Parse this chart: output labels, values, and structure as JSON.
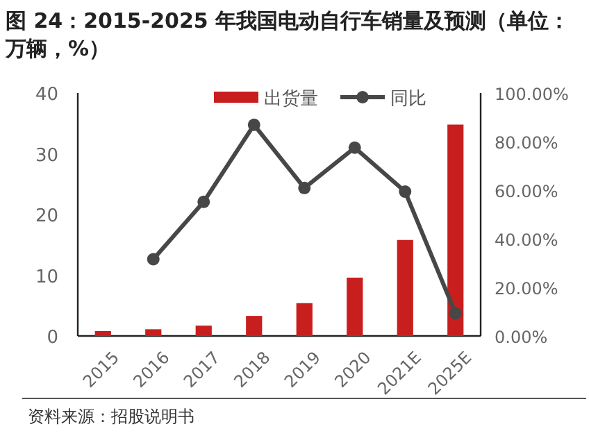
{
  "chart_data": {
    "type": "bar",
    "title": "图 24：2015-2025 年我国电动自行车销量及预测（单位：万辆，%）",
    "categories": [
      "2015",
      "2016",
      "2017",
      "2018",
      "2019",
      "2020",
      "2021E",
      "2025E"
    ],
    "series": [
      {
        "name": "出货量",
        "color": "#c81e1e",
        "values": [
          0.8,
          1.1,
          1.7,
          3.3,
          5.4,
          9.6,
          15.8,
          34.8
        ]
      },
      {
        "name": "同比",
        "type": "line",
        "axis": "y2",
        "color": "#474747",
        "marker": "circle",
        "values": [
          null,
          31.6,
          55.2,
          86.9,
          60.9,
          77.5,
          59.4,
          9.3
        ]
      }
    ],
    "ylim": [
      0,
      40
    ],
    "yticks": [
      0,
      10,
      20,
      30,
      40
    ],
    "y2lim": [
      0,
      100
    ],
    "y2ticks": [
      {
        "value": 0,
        "label": "0.00%"
      },
      {
        "value": 20,
        "label": "20.00%"
      },
      {
        "value": 40,
        "label": "40.00%"
      },
      {
        "value": 60,
        "label": "60.00%"
      },
      {
        "value": 80,
        "label": "80.00%"
      },
      {
        "value": 100,
        "label": "100.00%"
      }
    ],
    "legend": "top right",
    "grid": false,
    "annotations": [
      "资料来源：招股说明书"
    ]
  }
}
